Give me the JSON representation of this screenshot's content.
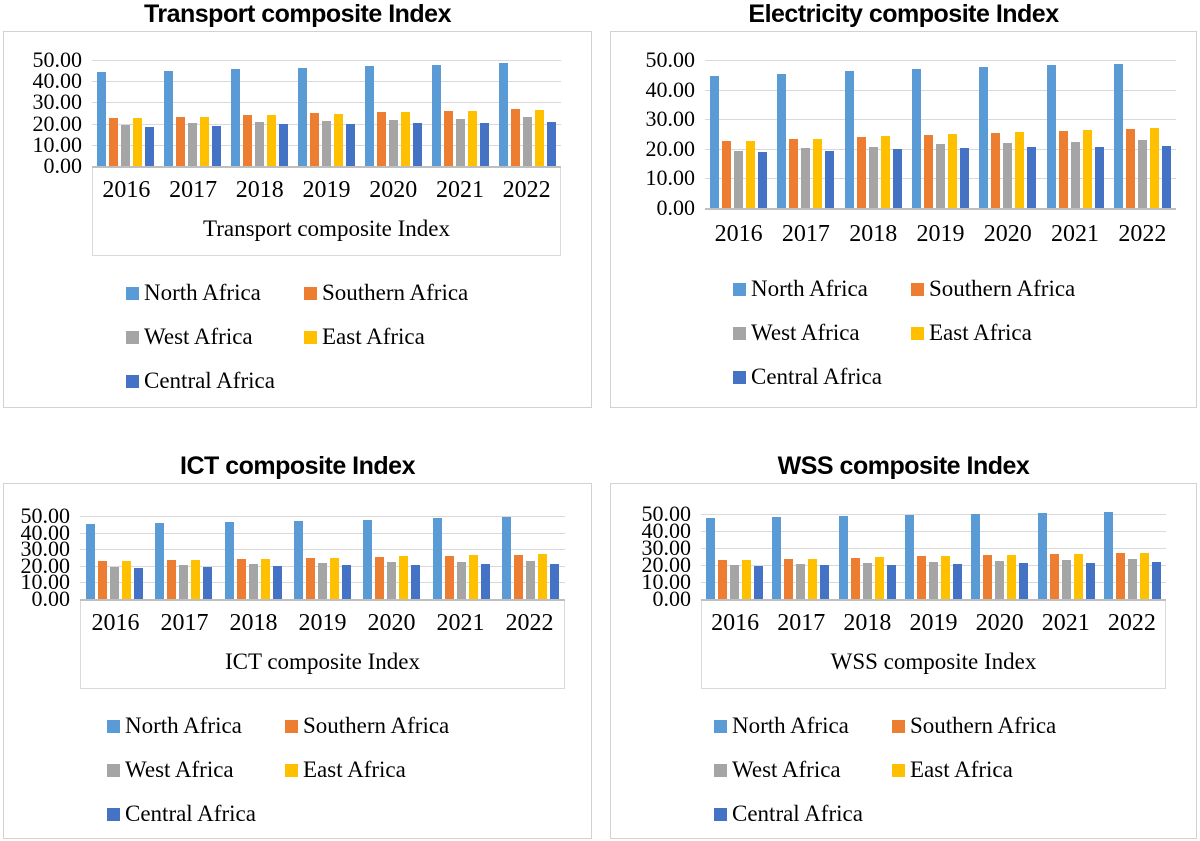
{
  "chart_data": [
    {
      "type": "bar",
      "title": "Transport composite Index",
      "xlabel": "Transport composite Index",
      "ylabel": "",
      "categories": [
        "2016",
        "2017",
        "2018",
        "2019",
        "2020",
        "2021",
        "2022"
      ],
      "yticks": [
        "50.00",
        "40.00",
        "30.00",
        "20.00",
        "10.00",
        "0.00"
      ],
      "ylim": [
        0,
        50
      ],
      "grid": true,
      "legend_position": "bottom",
      "series": [
        {
          "name": "North Africa",
          "color": "#5B9BD5",
          "values": [
            44.2,
            44.9,
            45.7,
            46.4,
            47.0,
            47.7,
            48.4
          ]
        },
        {
          "name": "Southern Africa",
          "color": "#ED7D31",
          "values": [
            22.6,
            23.3,
            24.1,
            24.8,
            25.4,
            26.1,
            26.7
          ]
        },
        {
          "name": "West Africa",
          "color": "#A5A5A5",
          "values": [
            19.4,
            20.1,
            20.8,
            21.4,
            21.9,
            22.4,
            23.0
          ]
        },
        {
          "name": "East Africa",
          "color": "#FFC000",
          "values": [
            22.6,
            23.2,
            24.1,
            24.7,
            25.4,
            26.0,
            26.5
          ]
        },
        {
          "name": "Central Africa",
          "color": "#4472C4",
          "values": [
            18.5,
            19.0,
            19.6,
            20.0,
            20.2,
            20.4,
            20.8
          ]
        }
      ]
    },
    {
      "type": "bar",
      "title": "Electricity composite Index",
      "xlabel": "",
      "ylabel": "",
      "categories": [
        "2016",
        "2017",
        "2018",
        "2019",
        "2020",
        "2021",
        "2022"
      ],
      "yticks": [
        "50.00",
        "40.00",
        "30.00",
        "20.00",
        "10.00",
        "0.00"
      ],
      "ylim": [
        0,
        50
      ],
      "grid": true,
      "legend_position": "bottom",
      "series": [
        {
          "name": "North Africa",
          "color": "#5B9BD5",
          "values": [
            44.6,
            45.3,
            46.3,
            47.1,
            47.7,
            48.2,
            48.8
          ]
        },
        {
          "name": "Southern Africa",
          "color": "#ED7D31",
          "values": [
            22.6,
            23.3,
            24.1,
            24.7,
            25.4,
            26.1,
            26.6
          ]
        },
        {
          "name": "West Africa",
          "color": "#A5A5A5",
          "values": [
            19.2,
            20.2,
            20.7,
            21.5,
            21.9,
            22.4,
            23.0
          ]
        },
        {
          "name": "East Africa",
          "color": "#FFC000",
          "values": [
            22.8,
            23.4,
            24.3,
            24.9,
            25.7,
            26.3,
            27.0
          ]
        },
        {
          "name": "Central Africa",
          "color": "#4472C4",
          "values": [
            18.8,
            19.3,
            19.9,
            20.3,
            20.5,
            20.7,
            21.0
          ]
        }
      ]
    },
    {
      "type": "bar",
      "title": "ICT composite Index",
      "xlabel": "ICT composite Index",
      "ylabel": "",
      "categories": [
        "2016",
        "2017",
        "2018",
        "2019",
        "2020",
        "2021",
        "2022"
      ],
      "yticks": [
        "50.00",
        "40.00",
        "30.00",
        "20.00",
        "10.00",
        "0.00"
      ],
      "ylim": [
        0,
        50
      ],
      "grid": true,
      "legend_position": "bottom",
      "series": [
        {
          "name": "North Africa",
          "color": "#5B9BD5",
          "values": [
            45.0,
            45.7,
            46.4,
            47.2,
            47.9,
            48.7,
            49.4
          ]
        },
        {
          "name": "Southern Africa",
          "color": "#ED7D31",
          "values": [
            22.7,
            23.3,
            24.1,
            24.8,
            25.5,
            26.2,
            26.8
          ]
        },
        {
          "name": "West Africa",
          "color": "#A5A5A5",
          "values": [
            19.4,
            20.2,
            20.8,
            21.5,
            22.0,
            22.5,
            23.2
          ]
        },
        {
          "name": "East Africa",
          "color": "#FFC000",
          "values": [
            22.9,
            23.5,
            24.4,
            25.0,
            25.8,
            26.4,
            27.0
          ]
        },
        {
          "name": "Central Africa",
          "color": "#4472C4",
          "values": [
            18.7,
            19.3,
            19.9,
            20.3,
            20.6,
            20.9,
            21.3
          ]
        }
      ]
    },
    {
      "type": "bar",
      "title": "WSS composite Index",
      "xlabel": "WSS composite Index",
      "ylabel": "",
      "categories": [
        "2016",
        "2017",
        "2018",
        "2019",
        "2020",
        "2021",
        "2022"
      ],
      "yticks": [
        "50.00",
        "40.00",
        "30.00",
        "20.00",
        "10.00",
        "0.00"
      ],
      "ylim": [
        0,
        50
      ],
      "grid": true,
      "legend_position": "bottom",
      "series": [
        {
          "name": "North Africa",
          "color": "#5B9BD5",
          "values": [
            47.9,
            48.5,
            49.1,
            49.7,
            50.3,
            50.8,
            51.3
          ]
        },
        {
          "name": "Southern Africa",
          "color": "#ED7D31",
          "values": [
            23.1,
            23.7,
            24.4,
            25.1,
            25.8,
            26.5,
            27.1
          ]
        },
        {
          "name": "West Africa",
          "color": "#A5A5A5",
          "values": [
            20.1,
            20.7,
            21.3,
            21.9,
            22.4,
            22.9,
            23.5
          ]
        },
        {
          "name": "East Africa",
          "color": "#FFC000",
          "values": [
            23.2,
            23.8,
            24.6,
            25.2,
            25.9,
            26.6,
            27.2
          ]
        },
        {
          "name": "Central Africa",
          "color": "#4472C4",
          "values": [
            19.3,
            19.8,
            20.3,
            20.7,
            20.9,
            21.2,
            21.6
          ]
        }
      ]
    }
  ]
}
